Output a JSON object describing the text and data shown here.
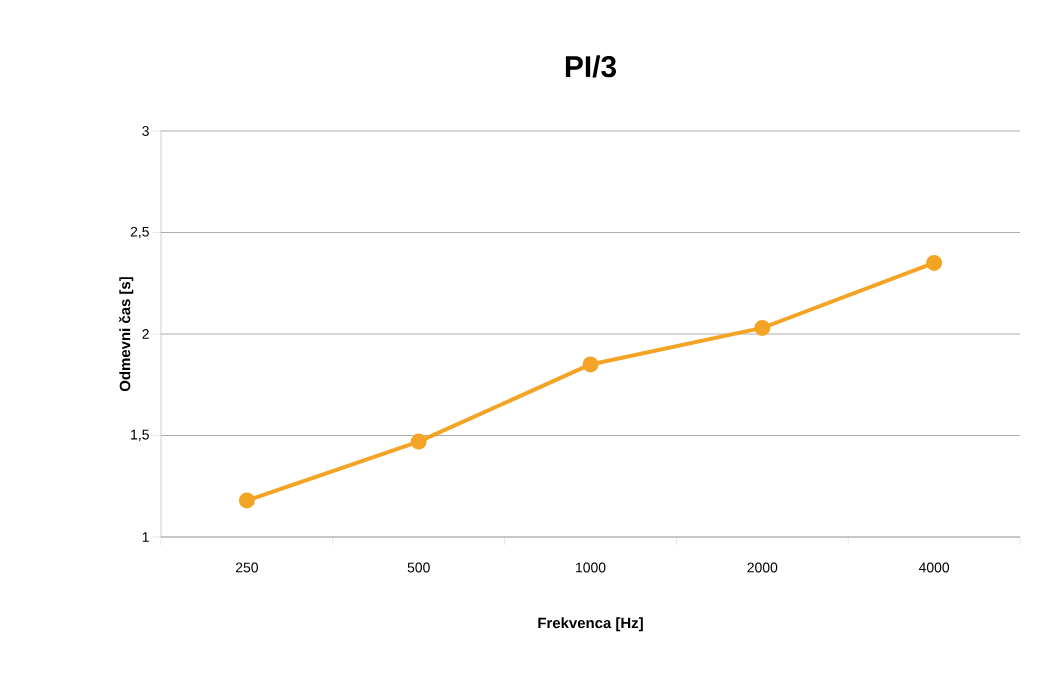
{
  "chart_data": {
    "type": "line",
    "title": "PI/3",
    "xlabel": "Frekvenca [Hz]",
    "ylabel": "Odmevni čas [s]",
    "categories": [
      "250",
      "500",
      "1000",
      "2000",
      "4000"
    ],
    "series": [
      {
        "color": "#f4a425",
        "values": [
          1.18,
          1.47,
          1.85,
          2.03,
          2.35
        ]
      }
    ],
    "ylim": [
      1,
      3
    ],
    "yticks": [
      1,
      {
        "value": 1.5,
        "label": "1,5"
      },
      2,
      {
        "value": 2.5,
        "label": "2,5"
      },
      3
    ],
    "grid": "y",
    "marker": "circle",
    "line_style": "solid"
  }
}
